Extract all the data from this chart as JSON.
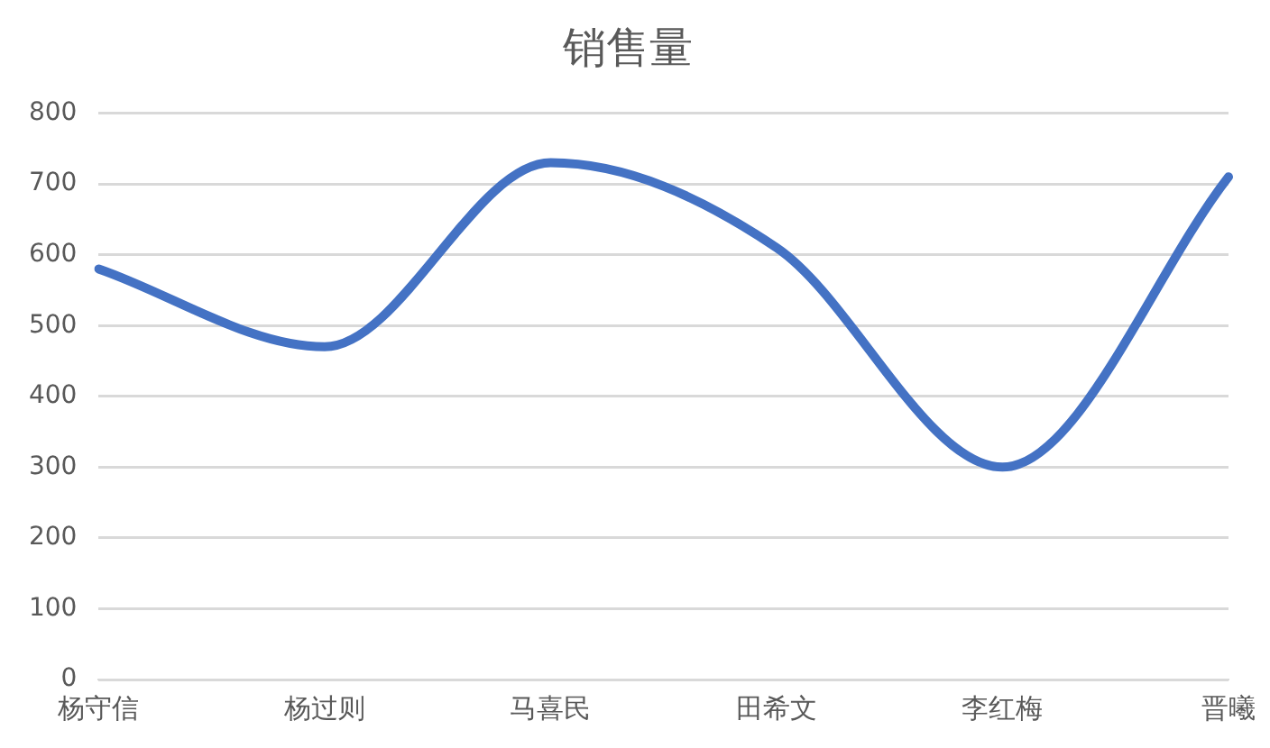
{
  "chart_data": {
    "type": "line",
    "title": "销售量",
    "categories": [
      "杨守信",
      "杨过则",
      "马喜民",
      "田希文",
      "李红梅",
      "晋曦"
    ],
    "series": [
      {
        "color": "#4472c4",
        "values": [
          580,
          470,
          730,
          610,
          300,
          710
        ]
      }
    ],
    "ylim": [
      0,
      800
    ],
    "yticks": [
      0,
      100,
      200,
      300,
      400,
      500,
      600,
      700,
      800
    ],
    "grid": "y",
    "legend": false,
    "marker": "none",
    "line_style": "solid"
  }
}
